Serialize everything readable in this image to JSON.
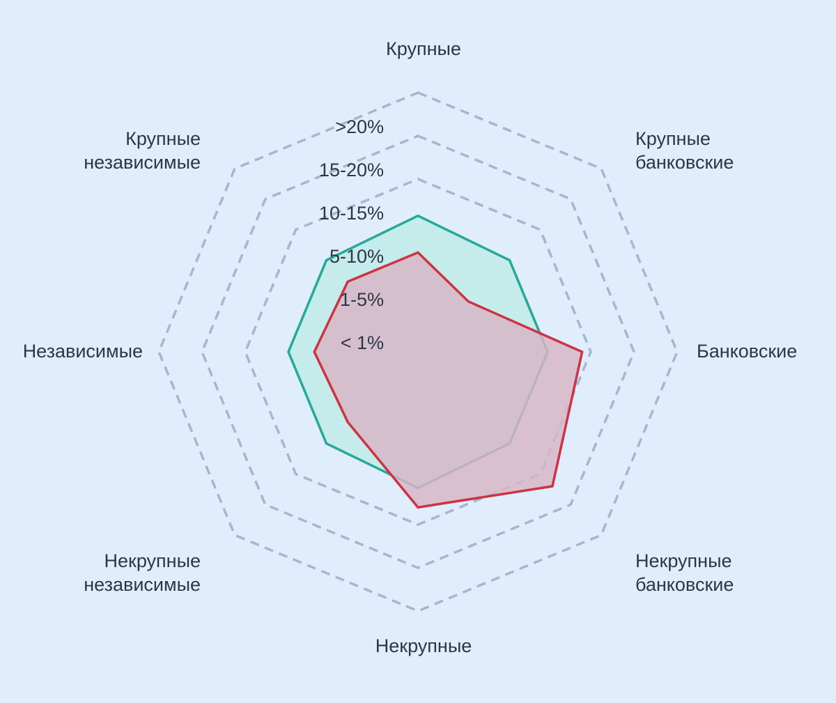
{
  "chart_data": {
    "type": "radar",
    "axes": [
      {
        "line1": "Крупные",
        "line2": ""
      },
      {
        "line1": "Крупные",
        "line2": "банковские"
      },
      {
        "line1": "Банковские",
        "line2": ""
      },
      {
        "line1": "Некрупные",
        "line2": "банковские"
      },
      {
        "line1": "Некрупные",
        "line2": ""
      },
      {
        "line1": "Некрупные",
        "line2": "независимые"
      },
      {
        "line1": "Независимые",
        "line2": ""
      },
      {
        "line1": "Крупные",
        "line2": "независимые"
      }
    ],
    "levels": [
      "< 1%",
      "1-5%",
      "5-10%",
      "10-15%",
      "15-20%",
      ">20%"
    ],
    "scale_max": 6,
    "series": [
      {
        "color": "#26a999",
        "fill": "#c5ebeb",
        "values": [
          3.15,
          3.0,
          3.0,
          3.0,
          3.15,
          3.0,
          3.0,
          3.0
        ]
      },
      {
        "color": "#cc3344",
        "fill": "#d9b4c4",
        "values": [
          2.3,
          1.65,
          3.8,
          4.4,
          3.6,
          2.3,
          2.4,
          2.3
        ]
      }
    ]
  }
}
